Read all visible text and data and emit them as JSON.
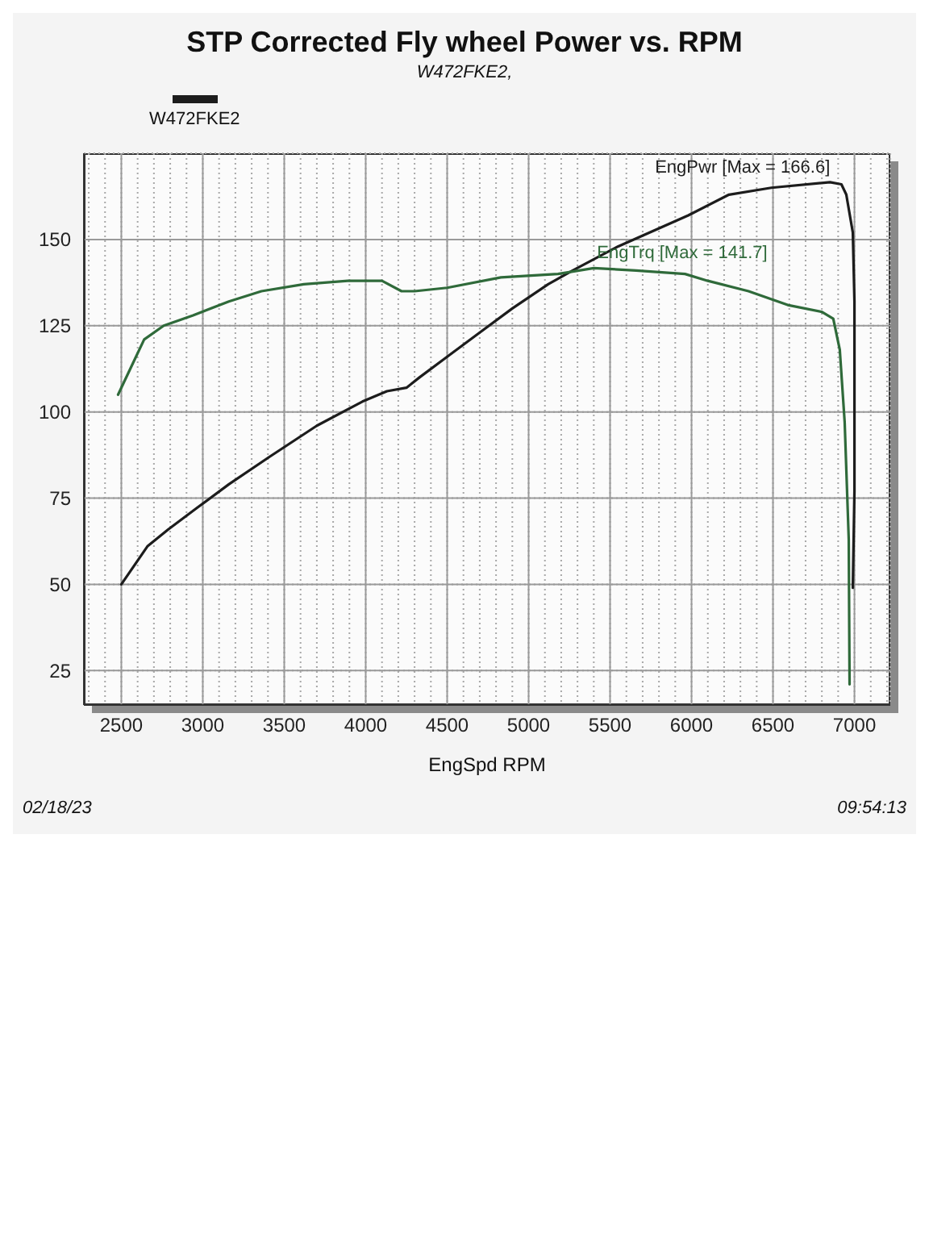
{
  "chart_data": {
    "type": "line",
    "title": "STP Corrected Fly wheel Power vs. RPM",
    "subtitle": "W472FKE2,",
    "xlabel": "EngSpd RPM",
    "annotations": [
      "W472FKE2",
      "02/18/23",
      "09:54:13"
    ],
    "xlim": [
      2270,
      7220
    ],
    "xticks": [
      {
        "value": 2300,
        "label": null
      },
      {
        "value": 2400,
        "label": null
      },
      2500,
      {
        "value": 2600,
        "label": null
      },
      {
        "value": 2700,
        "label": null
      },
      {
        "value": 2800,
        "label": null
      },
      {
        "value": 2900,
        "label": null
      },
      3000,
      {
        "value": 3100,
        "label": null
      },
      {
        "value": 3200,
        "label": null
      },
      {
        "value": 3300,
        "label": null
      },
      {
        "value": 3400,
        "label": null
      },
      3500,
      {
        "value": 3600,
        "label": null
      },
      {
        "value": 3700,
        "label": null
      },
      {
        "value": 3800,
        "label": null
      },
      {
        "value": 3900,
        "label": null
      },
      4000,
      {
        "value": 4100,
        "label": null
      },
      {
        "value": 4200,
        "label": null
      },
      {
        "value": 4300,
        "label": null
      },
      {
        "value": 4400,
        "label": null
      },
      4500,
      {
        "value": 4600,
        "label": null
      },
      {
        "value": 4700,
        "label": null
      },
      {
        "value": 4800,
        "label": null
      },
      {
        "value": 4900,
        "label": null
      },
      5000,
      {
        "value": 5100,
        "label": null
      },
      {
        "value": 5200,
        "label": null
      },
      {
        "value": 5300,
        "label": null
      },
      {
        "value": 5400,
        "label": null
      },
      5500,
      {
        "value": 5600,
        "label": null
      },
      {
        "value": 5700,
        "label": null
      },
      {
        "value": 5800,
        "label": null
      },
      {
        "value": 5900,
        "label": null
      },
      6000,
      {
        "value": 6100,
        "label": null
      },
      {
        "value": 6200,
        "label": null
      },
      {
        "value": 6300,
        "label": null
      },
      {
        "value": 6400,
        "label": null
      },
      6500,
      {
        "value": 6600,
        "label": null
      },
      {
        "value": 6700,
        "label": null
      },
      {
        "value": 6800,
        "label": null
      },
      {
        "value": 6900,
        "label": null
      },
      7000,
      {
        "value": 7100,
        "label": null
      },
      {
        "value": 7200,
        "label": null
      }
    ],
    "ylim": [
      15,
      175
    ],
    "yticks": [
      25,
      50,
      75,
      100,
      125,
      150
    ],
    "grid": true,
    "marker": "none",
    "line_style": "solid",
    "series": [
      {
        "name": "EngPwr [Max = 166.6]",
        "color": "#1c1c1c",
        "x": [
          2500,
          2660,
          2790,
          2960,
          3160,
          3410,
          3700,
          3980,
          4130,
          4250,
          4330,
          4500,
          4700,
          4900,
          5120,
          5270,
          5550,
          5980,
          6230,
          6490,
          6850,
          6920,
          6950,
          6990,
          7000,
          7000,
          7000,
          6990
        ],
        "values": [
          50,
          61,
          66,
          72,
          79,
          87,
          96,
          103,
          106,
          107,
          110,
          116,
          123,
          130,
          137,
          141,
          148,
          157,
          163,
          165,
          166.6,
          166,
          163,
          152,
          132,
          104,
          77,
          49
        ]
      },
      {
        "name": "EngTrq [Max = 141.7]",
        "color": "#2f6a3a",
        "x": [
          2480,
          2570,
          2640,
          2760,
          2940,
          3160,
          3360,
          3620,
          3890,
          4100,
          4220,
          4300,
          4500,
          4830,
          5180,
          5400,
          5660,
          5960,
          6100,
          6350,
          6590,
          6800,
          6870,
          6910,
          6940,
          6965,
          6970
        ],
        "values": [
          105,
          114,
          121,
          125,
          128,
          132,
          135,
          137,
          138,
          138,
          135,
          135,
          136,
          139,
          140,
          141.7,
          141,
          140,
          138,
          135,
          131,
          129,
          127,
          118,
          97,
          63,
          21
        ]
      }
    ]
  }
}
